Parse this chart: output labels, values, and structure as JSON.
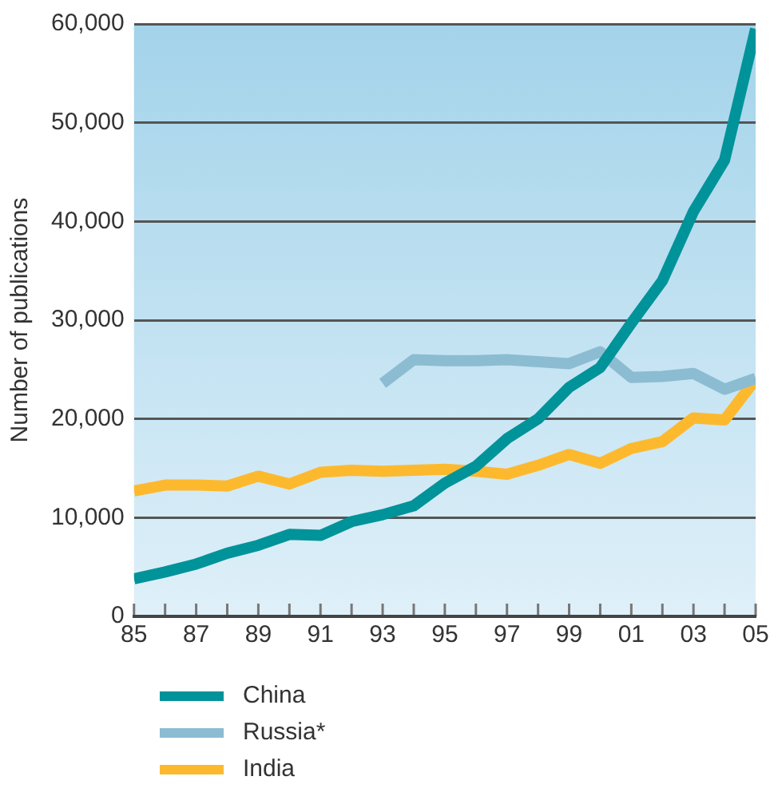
{
  "chart_data": {
    "type": "line",
    "ylabel": "Number of publications",
    "x": [
      1985,
      1986,
      1987,
      1988,
      1989,
      1990,
      1991,
      1992,
      1993,
      1994,
      1995,
      1996,
      1997,
      1998,
      1999,
      2000,
      2001,
      2002,
      2003,
      2004,
      2005
    ],
    "series": [
      {
        "name": "China",
        "color": "#009399",
        "values": [
          3800,
          4500,
          5300,
          6400,
          7200,
          8300,
          8200,
          9600,
          10300,
          11200,
          13500,
          15200,
          18000,
          20000,
          23200,
          25200,
          29700,
          34000,
          41000,
          46200,
          59500
        ]
      },
      {
        "name": "Russia*",
        "color": "#8bbcd2",
        "values": [
          null,
          null,
          null,
          null,
          null,
          null,
          null,
          null,
          23600,
          26000,
          25900,
          25900,
          26000,
          25800,
          25600,
          26800,
          24200,
          24300,
          24600,
          23000,
          24100
        ]
      },
      {
        "name": "India",
        "color": "#fdb92e",
        "values": [
          12700,
          13300,
          13300,
          13200,
          14200,
          13400,
          14600,
          14800,
          14700,
          14800,
          14900,
          14700,
          14400,
          15300,
          16400,
          15500,
          17000,
          17700,
          20100,
          19900,
          24000
        ]
      }
    ],
    "xlim": [
      1985,
      2005
    ],
    "xticks": [
      {
        "value": 1985,
        "label": "85"
      },
      {
        "value": 1986,
        "label": null
      },
      {
        "value": 1987,
        "label": "87"
      },
      {
        "value": 1988,
        "label": null
      },
      {
        "value": 1989,
        "label": "89"
      },
      {
        "value": 1990,
        "label": null
      },
      {
        "value": 1991,
        "label": "91"
      },
      {
        "value": 1992,
        "label": null
      },
      {
        "value": 1993,
        "label": "93"
      },
      {
        "value": 1994,
        "label": null
      },
      {
        "value": 1995,
        "label": "95"
      },
      {
        "value": 1996,
        "label": null
      },
      {
        "value": 1997,
        "label": "97"
      },
      {
        "value": 1998,
        "label": null
      },
      {
        "value": 1999,
        "label": "99"
      },
      {
        "value": 2000,
        "label": null
      },
      {
        "value": 2001,
        "label": "01"
      },
      {
        "value": 2002,
        "label": null
      },
      {
        "value": 2003,
        "label": "03"
      },
      {
        "value": 2004,
        "label": null
      },
      {
        "value": 2005,
        "label": "05"
      }
    ],
    "ylim": [
      0,
      60000
    ],
    "yticks": [
      {
        "value": 0,
        "label": "0"
      },
      {
        "value": 10000,
        "label": "10,000"
      },
      {
        "value": 20000,
        "label": "20,000"
      },
      {
        "value": 30000,
        "label": "30,000"
      },
      {
        "value": 40000,
        "label": "40,000"
      },
      {
        "value": 50000,
        "label": "50,000"
      },
      {
        "value": 60000,
        "label": "60,000"
      }
    ],
    "grid": "y",
    "legend": "bottom left",
    "marker": "none",
    "line_style": "solid"
  }
}
